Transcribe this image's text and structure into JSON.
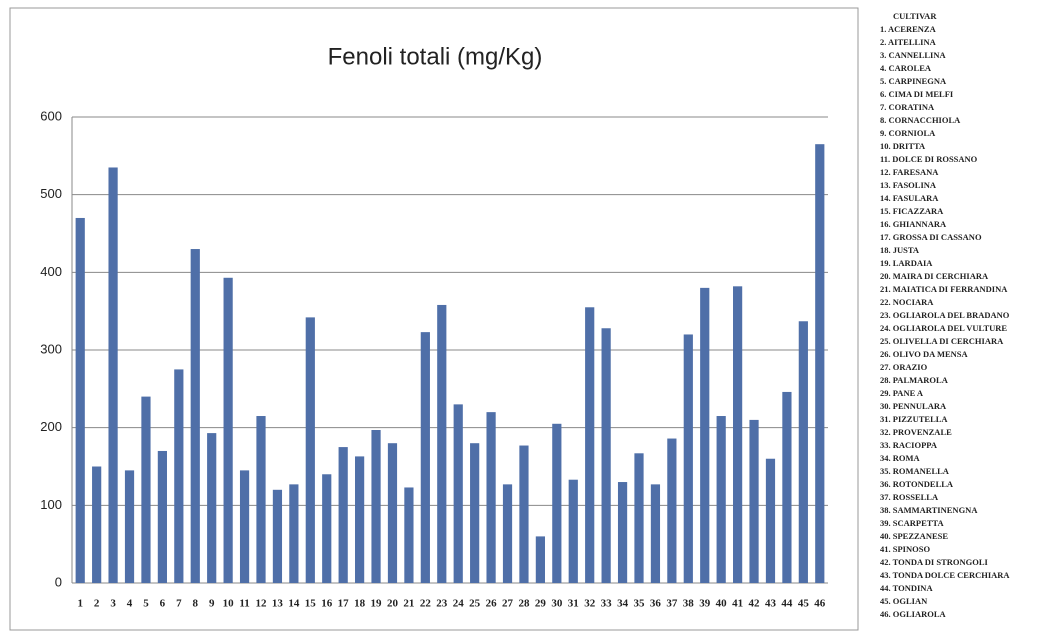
{
  "chart_data": {
    "type": "bar",
    "title": "Fenoli totali (mg/Kg)",
    "categories": [
      "1",
      "2",
      "3",
      "4",
      "5",
      "6",
      "7",
      "8",
      "9",
      "10",
      "11",
      "12",
      "13",
      "14",
      "15",
      "16",
      "17",
      "18",
      "19",
      "20",
      "21",
      "22",
      "23",
      "24",
      "25",
      "26",
      "27",
      "28",
      "29",
      "30",
      "31",
      "32",
      "33",
      "34",
      "35",
      "36",
      "37",
      "38",
      "39",
      "40",
      "41",
      "42",
      "43",
      "44",
      "45",
      "46"
    ],
    "values": [
      470,
      150,
      535,
      145,
      240,
      170,
      275,
      430,
      193,
      393,
      145,
      215,
      120,
      127,
      342,
      140,
      175,
      163,
      197,
      180,
      123,
      323,
      358,
      230,
      180,
      220,
      127,
      177,
      60,
      205,
      133,
      355,
      328,
      130,
      167,
      127,
      186,
      320,
      380,
      215,
      382,
      210,
      160,
      246,
      337,
      565
    ],
    "color": "#4f6fa8",
    "ylim": [
      0,
      600
    ],
    "yticks": [
      0,
      100,
      200,
      300,
      400,
      500,
      600
    ],
    "grid": true
  },
  "legend": {
    "title": "CULTIVAR",
    "items": [
      "1. ACERENZA",
      "2. AITELLINA",
      "3. CANNELLINA",
      "4. CAROLEA",
      "5. CARPINEGNA",
      "6. CIMA DI MELFI",
      "7. CORATINA",
      "8. CORNACCHIOLA",
      "9. CORNIOLA",
      "10. DRITTA",
      "11. DOLCE DI ROSSANO",
      "12. FARESANA",
      "13. FASOLINA",
      "14. FASULARA",
      "15. FICAZZARA",
      "16. GHIANNARA",
      "17. GROSSA DI CASSANO",
      "18. JUSTA",
      "19. LARDAIA",
      "20. MAIRA DI CERCHIARA",
      "21. MAIATICA DI FERRANDINA",
      "22. NOCIARA",
      "23. OGLIAROLA DEL BRADANO",
      "24. OGLIAROLA DEL VULTURE",
      "25. OLIVELLA DI CERCHIARA",
      "26. OLIVO DA MENSA",
      "27. ORAZIO",
      "28. PALMAROLA",
      "29. PANE A",
      "30. PENNULARA",
      "31. PIZZUTELLA",
      "32. PROVENZALE",
      "33. RACIOPPA",
      "34. ROMA",
      "35. ROMANELLA",
      "36. ROTONDELLA",
      "37. ROSSELLA",
      "38. SAMMARTINENGNA",
      "39. SCARPETTA",
      "40. SPEZZANESE",
      "41. SPINOSO",
      "42. TONDA DI STRONGOLI",
      "43. TONDA DOLCE CERCHIARA",
      "44. TONDINA",
      "45. OGLIAN",
      "46. OGLIAROLA"
    ]
  }
}
